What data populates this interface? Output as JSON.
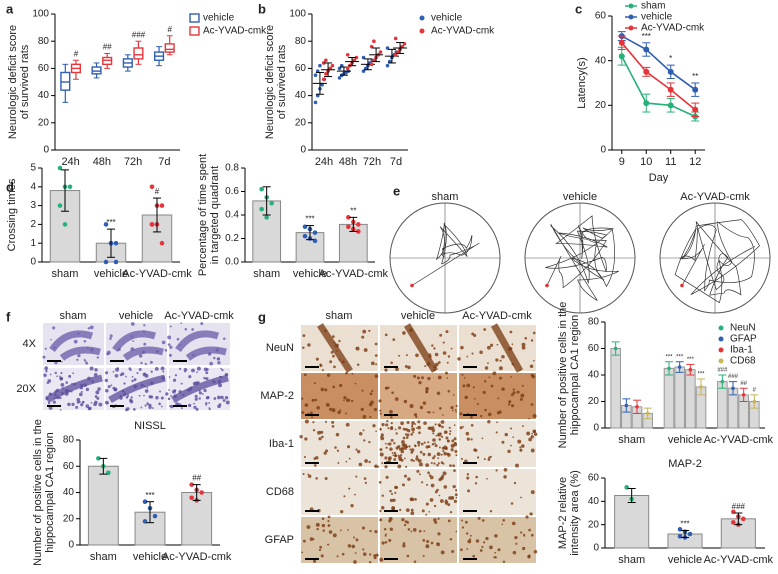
{
  "chart_data": [
    {
      "type": "box",
      "panel": "a",
      "ylabel": [
        "Neurologic deficit score",
        "of survived rats"
      ],
      "categories": [
        "24h",
        "48h",
        "72h",
        "7d"
      ],
      "ylim": [
        0,
        100
      ],
      "yticks": [
        0,
        20,
        40,
        60,
        80,
        100
      ],
      "legend": "outside right",
      "series": [
        {
          "name": "vehicle",
          "color": "#2f5fb3",
          "boxes": [
            [
              35,
              44,
              50,
              57,
              63
            ],
            [
              53,
              56,
              58,
              61,
              64
            ],
            [
              58,
              61,
              64,
              67,
              70
            ],
            [
              62,
              66,
              69,
              72,
              76
            ]
          ]
        },
        {
          "name": "Ac-YVAD-cmk",
          "color": "#e5353b",
          "boxes": [
            [
              52,
              57,
              60,
              63,
              66
            ],
            [
              60,
              63,
              66,
              68,
              71
            ],
            [
              63,
              67,
              70,
              75,
              80
            ],
            [
              70,
              72,
              74,
              78,
              84
            ]
          ],
          "sig": [
            "#",
            "##",
            "###",
            "#"
          ]
        }
      ]
    },
    {
      "type": "dotplot",
      "panel": "b",
      "ylabel": [
        "Neurologic deficit score",
        "of survived rats"
      ],
      "categories": [
        "24h",
        "48h",
        "72h",
        "7d"
      ],
      "ylim": [
        0,
        100
      ],
      "yticks": [
        0,
        20,
        40,
        60,
        80,
        100
      ],
      "legend": "outside right",
      "series": [
        {
          "name": "vehicle",
          "color": "#2f5fb3",
          "points": [
            [
              35,
              40,
              45,
              48,
              52,
              55,
              58,
              62
            ],
            [
              53,
              55,
              56,
              57,
              58,
              60,
              62
            ],
            [
              58,
              60,
              62,
              64,
              66,
              68
            ],
            [
              62,
              65,
              68,
              70,
              72,
              75
            ]
          ],
          "mean": [
            49,
            58,
            63,
            69
          ],
          "sd": [
            8,
            3,
            4,
            5
          ]
        },
        {
          "name": "Ac-YVAD-cmk",
          "color": "#e5353b",
          "points": [
            [
              52,
              56,
              58,
              60,
              62,
              64,
              66
            ],
            [
              60,
              62,
              64,
              66,
              68,
              70
            ],
            [
              63,
              66,
              68,
              70,
              72,
              76,
              80
            ],
            [
              70,
              72,
              74,
              76,
              78,
              82
            ]
          ],
          "mean": [
            59,
            65,
            70,
            75
          ],
          "sd": [
            5,
            3,
            5,
            4
          ]
        }
      ]
    },
    {
      "type": "line",
      "panel": "c",
      "xlabel": "Day",
      "ylabel": [
        "Latency(s)"
      ],
      "x": [
        9,
        10,
        11,
        12
      ],
      "xlim": [
        8.6,
        12.4
      ],
      "xticks": [
        9,
        10,
        11,
        12
      ],
      "ylim": [
        0,
        60
      ],
      "yticks": [
        0,
        20,
        40,
        60
      ],
      "legend": "upper right",
      "series": [
        {
          "name": "sham",
          "color": "#28b07a",
          "values": [
            42,
            21,
            20,
            15
          ],
          "errors": [
            4,
            4,
            3,
            2
          ]
        },
        {
          "name": "vehicle",
          "color": "#2f5fb3",
          "values": [
            51,
            45,
            35,
            27
          ],
          "errors": [
            2,
            3,
            3,
            3
          ],
          "sig": [
            null,
            "***",
            "*",
            "**"
          ]
        },
        {
          "name": "Ac-YVAD-cmk",
          "color": "#e5353b",
          "values": [
            48,
            35,
            27,
            18
          ],
          "errors": [
            3,
            2,
            3,
            3
          ]
        }
      ]
    },
    {
      "type": "bar",
      "panel": "d",
      "ylabel": [
        "Crossing times"
      ],
      "categories": [
        "sham",
        "vehicle",
        "Ac-YVAD-cmk"
      ],
      "values": [
        3.8,
        1.0,
        2.5
      ],
      "errors": [
        1.1,
        0.75,
        0.9
      ],
      "color": "#d9d9d9",
      "point_colors": [
        "#28b07a",
        "#2f5fb3",
        "#e5353b"
      ],
      "points": [
        [
          5,
          4,
          4,
          3,
          2
        ],
        [
          2,
          1,
          1,
          0,
          1,
          0
        ],
        [
          4,
          3,
          3,
          2,
          2,
          1,
          2
        ]
      ],
      "sig": [
        null,
        "***",
        "#"
      ],
      "ylim": [
        0,
        5
      ],
      "yticks": [
        0,
        1,
        2,
        3,
        4,
        5
      ]
    },
    {
      "type": "bar",
      "ylabel": [
        "Percentage of time spent",
        "in targeted quadrant"
      ],
      "categories": [
        "sham",
        "vehicle",
        "Ac-YVAD-cmk"
      ],
      "values": [
        0.52,
        0.25,
        0.32
      ],
      "errors": [
        0.12,
        0.06,
        0.06
      ],
      "color": "#d9d9d9",
      "point_colors": [
        "#28b07a",
        "#2f5fb3",
        "#e5353b"
      ],
      "points": [
        [
          0.62,
          0.55,
          0.5,
          0.45,
          0.38
        ],
        [
          0.3,
          0.28,
          0.25,
          0.22,
          0.2,
          0.18
        ],
        [
          0.38,
          0.34,
          0.32,
          0.3,
          0.28,
          0.26
        ]
      ],
      "sig": [
        null,
        "***",
        "**"
      ],
      "ylim": [
        0,
        0.8
      ],
      "yticks": [
        {
          "value": 0,
          "label": "0.0"
        },
        0.2,
        0.4,
        0.6,
        0.8
      ]
    },
    {
      "type": "bar",
      "title": "NISSL",
      "ylabel": [
        "Number of positive cells in the",
        "hippocampal CA1 region"
      ],
      "categories": [
        "sham",
        "vehicle",
        "Ac-YVAD-cmk"
      ],
      "values": [
        60,
        25,
        40
      ],
      "errors": [
        6,
        8,
        6
      ],
      "color": "#d9d9d9",
      "point_colors": [
        "#28b07a",
        "#2f5fb3",
        "#e5353b"
      ],
      "points": [
        [
          66,
          60,
          55
        ],
        [
          33,
          28,
          22,
          18
        ],
        [
          46,
          42,
          40,
          36,
          34
        ]
      ],
      "sig": [
        null,
        "***",
        "##"
      ],
      "ylim": [
        0,
        80
      ],
      "yticks": [
        0,
        20,
        40,
        60,
        80
      ]
    },
    {
      "type": "groupedbar",
      "ylabel": [
        "Number of positive cells in the",
        "hippocampal CA1 region"
      ],
      "categories": [
        "sham",
        "vehicle",
        "Ac-YVAD-cmk"
      ],
      "ylim": [
        0,
        80
      ],
      "yticks": [
        0,
        20,
        40,
        60,
        80
      ],
      "legend": "upper right",
      "color": "#d9d9d9",
      "series": [
        {
          "name": "NeuN",
          "color": "#28b07a",
          "values": [
            60,
            45,
            35
          ],
          "errors": [
            5,
            5,
            5
          ],
          "sig": [
            null,
            "***",
            "###"
          ]
        },
        {
          "name": "GFAP",
          "color": "#2f5fb3",
          "values": [
            17,
            46,
            30
          ],
          "errors": [
            5,
            4,
            5
          ],
          "sig": [
            null,
            "***",
            "###"
          ]
        },
        {
          "name": "Iba-1",
          "color": "#e5353b",
          "values": [
            16,
            44,
            25
          ],
          "errors": [
            5,
            4,
            5
          ],
          "sig": [
            null,
            "***",
            "##"
          ]
        },
        {
          "name": "CD68",
          "color": "#c9b458",
          "values": [
            11,
            31,
            20
          ],
          "errors": [
            4,
            6,
            5
          ],
          "sig": [
            null,
            "***",
            "#"
          ]
        }
      ]
    },
    {
      "type": "bar",
      "title": "MAP-2",
      "ylabel": [
        "MAP-2 relative",
        "intensity area (%)"
      ],
      "categories": [
        "sham",
        "vehicle",
        "Ac-YVAD-cmk"
      ],
      "values": [
        45,
        12,
        25
      ],
      "errors": [
        6,
        3,
        5
      ],
      "color": "#d9d9d9",
      "point_colors": [
        "#28b07a",
        "#2f5fb3",
        "#e5353b"
      ],
      "points": [
        [
          52,
          42
        ],
        [
          16,
          14,
          12,
          10,
          9
        ],
        [
          31,
          27,
          25,
          22,
          20
        ]
      ],
      "sig": [
        null,
        "***",
        "###"
      ],
      "ylim": [
        0,
        60
      ],
      "yticks": [
        0,
        20,
        40,
        60
      ]
    }
  ],
  "figure": {
    "e": {
      "label": "e",
      "titles": [
        "sham",
        "vehicle",
        "Ac-YVAD-cmk"
      ]
    },
    "f": {
      "label": "f",
      "columns": [
        "sham",
        "vehicle",
        "Ac-YVAD-cmk"
      ],
      "rows": [
        "4X",
        "20X"
      ]
    },
    "g": {
      "label": "g",
      "columns": [
        "sham",
        "vehicle",
        "Ac-YVAD-cmk"
      ],
      "rows": [
        "NeuN",
        "MAP-2",
        "Iba-1",
        "CD68",
        "GFAP"
      ]
    }
  }
}
